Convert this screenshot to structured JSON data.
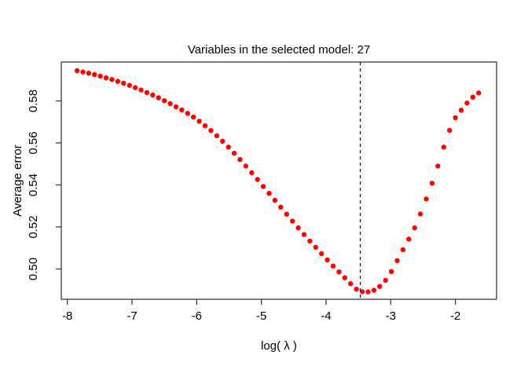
{
  "page": {
    "background": "#ffffff"
  },
  "figure": {
    "title": "Variables in the selected model: 27",
    "xlabel": "log( λ )",
    "ylabel": "Average error",
    "x_ticks": [
      "-8",
      "-7",
      "-6",
      "-5",
      "-4",
      "-3",
      "-2"
    ],
    "x_tick_values": [
      -8,
      -7,
      -6,
      -5,
      -4,
      -3,
      -2
    ],
    "y_ticks": [
      "0.50",
      "0.52",
      "0.54",
      "0.56",
      "0.58"
    ],
    "y_tick_values": [
      0.5,
      0.52,
      0.54,
      0.56,
      0.58
    ],
    "colors": {
      "points": "#ff0000",
      "axis": "#3a3a3a",
      "text": "#000000",
      "vline": "#1a1a1a"
    }
  },
  "chart_data": {
    "type": "scatter",
    "title": "Variables in the selected model: 27",
    "xlabel": "log( λ )",
    "ylabel": "Average error",
    "xlim": [
      -8.094,
      -1.363
    ],
    "ylim": [
      0.4856,
      0.5985
    ],
    "grid": false,
    "legend": null,
    "point_color": "#ff0000",
    "point_radius": 3.2,
    "vline": {
      "x": -3.47,
      "style": "dashed",
      "color": "#1a1a1a"
    },
    "x": [
      -7.85,
      -7.76,
      -7.67,
      -7.58,
      -7.49,
      -7.4,
      -7.31,
      -7.22,
      -7.13,
      -7.04,
      -6.95,
      -6.86,
      -6.77,
      -6.68,
      -6.59,
      -6.5,
      -6.41,
      -6.32,
      -6.23,
      -6.14,
      -6.05,
      -5.96,
      -5.87,
      -5.78,
      -5.69,
      -5.6,
      -5.51,
      -5.42,
      -5.33,
      -5.24,
      -5.15,
      -5.06,
      -4.97,
      -4.88,
      -4.79,
      -4.7,
      -4.61,
      -4.52,
      -4.43,
      -4.34,
      -4.25,
      -4.16,
      -4.07,
      -3.98,
      -3.89,
      -3.8,
      -3.71,
      -3.62,
      -3.53,
      -3.44,
      -3.35,
      -3.26,
      -3.17,
      -3.08,
      -2.99,
      -2.9,
      -2.81,
      -2.72,
      -2.63,
      -2.54,
      -2.45,
      -2.36,
      -2.27,
      -2.18,
      -2.09,
      -2.0,
      -1.91,
      -1.82,
      -1.73,
      -1.64
    ],
    "y": [
      0.5944,
      0.5938,
      0.5932,
      0.5925,
      0.5918,
      0.591,
      0.5902,
      0.5893,
      0.5884,
      0.5874,
      0.5863,
      0.5852,
      0.584,
      0.5828,
      0.5815,
      0.5801,
      0.5787,
      0.5772,
      0.5757,
      0.5741,
      0.5723,
      0.5703,
      0.5682,
      0.5659,
      0.5634,
      0.5608,
      0.558,
      0.5551,
      0.5521,
      0.549,
      0.5458,
      0.5426,
      0.5393,
      0.536,
      0.5327,
      0.5294,
      0.5261,
      0.5228,
      0.5196,
      0.5164,
      0.5133,
      0.5103,
      0.5073,
      0.5043,
      0.5014,
      0.4986,
      0.4958,
      0.493,
      0.4904,
      0.4892,
      0.4891,
      0.4899,
      0.4917,
      0.4946,
      0.4988,
      0.504,
      0.5092,
      0.5142,
      0.5196,
      0.5262,
      0.5333,
      0.5408,
      0.549,
      0.558,
      0.566,
      0.572,
      0.5756,
      0.579,
      0.5818,
      0.5838
    ]
  }
}
